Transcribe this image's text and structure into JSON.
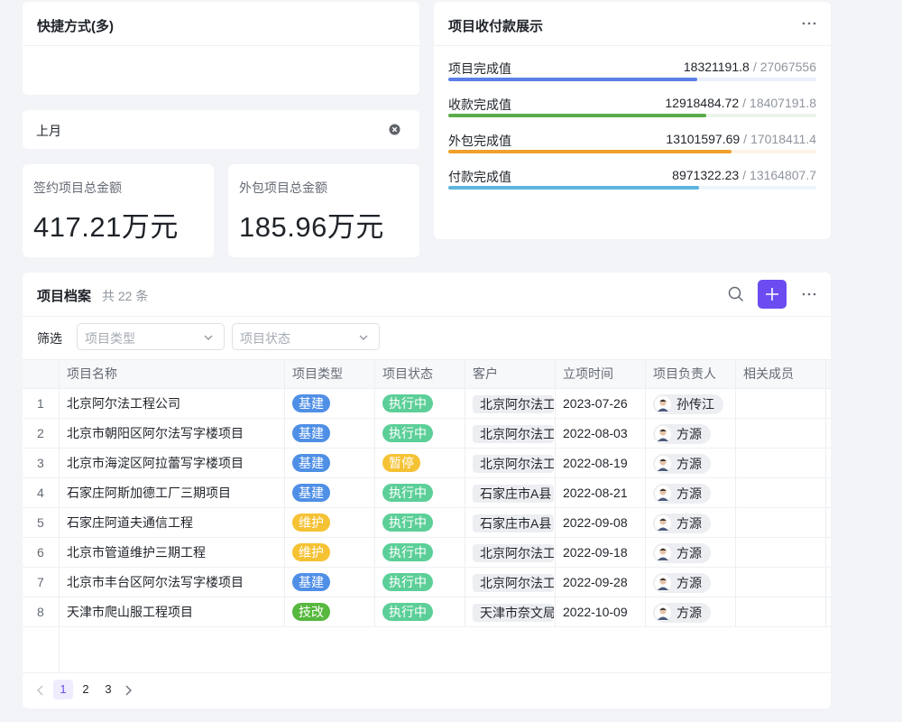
{
  "shortcuts": {
    "title": "快捷方式(多)"
  },
  "period": {
    "value": "上月"
  },
  "stats": [
    {
      "label": "签约项目总金额",
      "value": "417.21万元"
    },
    {
      "label": "外包项目总金额",
      "value": "185.96万元"
    }
  ],
  "progress": {
    "title": "项目收付款展示",
    "separator": "/",
    "items": [
      {
        "label": "项目完成值",
        "value": 18321191.8,
        "total": 27067556,
        "color": "#5b7fe8"
      },
      {
        "label": "收款完成值",
        "value": 12918484.72,
        "total": 18407191.8,
        "color": "#5aab48"
      },
      {
        "label": "外包完成值",
        "value": 13101597.69,
        "total": 17018411.4,
        "color": "#f0a02c"
      },
      {
        "label": "付款完成值",
        "value": 8971322.23,
        "total": 13164807.7,
        "color": "#5db4df"
      }
    ]
  },
  "table": {
    "title": "项目档案",
    "count": "共 22 条",
    "filter_label": "筛选",
    "filters": [
      "项目类型",
      "项目状态"
    ],
    "columns": [
      "项目名称",
      "项目类型",
      "项目状态",
      "客户",
      "立项时间",
      "项目负责人",
      "相关成员"
    ],
    "rows": [
      {
        "no": 1,
        "name": "北京阿尔法工程公司",
        "type": {
          "text": "基建",
          "color": "#4f8fe6"
        },
        "status": {
          "text": "执行中",
          "color": "#5ccf98"
        },
        "client": "北京阿尔法工",
        "date": "2023-07-26",
        "owner": "孙传江"
      },
      {
        "no": 2,
        "name": "北京市朝阳区阿尔法写字楼项目",
        "type": {
          "text": "基建",
          "color": "#4f8fe6"
        },
        "status": {
          "text": "执行中",
          "color": "#5ccf98"
        },
        "client": "北京阿尔法工",
        "date": "2022-08-03",
        "owner": "方源"
      },
      {
        "no": 3,
        "name": "北京市海淀区阿拉蕾写字楼项目",
        "type": {
          "text": "基建",
          "color": "#4f8fe6"
        },
        "status": {
          "text": "暂停",
          "color": "#f5c234"
        },
        "client": "北京阿尔法工",
        "date": "2022-08-19",
        "owner": "方源"
      },
      {
        "no": 4,
        "name": "石家庄阿斯加德工厂三期项目",
        "type": {
          "text": "基建",
          "color": "#4f8fe6"
        },
        "status": {
          "text": "执行中",
          "color": "#5ccf98"
        },
        "client": "石家庄市A县",
        "date": "2022-08-21",
        "owner": "方源"
      },
      {
        "no": 5,
        "name": "石家庄阿道夫通信工程",
        "type": {
          "text": "维护",
          "color": "#f5c234"
        },
        "status": {
          "text": "执行中",
          "color": "#5ccf98"
        },
        "client": "石家庄市A县",
        "date": "2022-09-08",
        "owner": "方源"
      },
      {
        "no": 6,
        "name": "北京市管道维护三期工程",
        "type": {
          "text": "维护",
          "color": "#f5c234"
        },
        "status": {
          "text": "执行中",
          "color": "#5ccf98"
        },
        "client": "北京阿尔法工",
        "date": "2022-09-18",
        "owner": "方源"
      },
      {
        "no": 7,
        "name": "北京市丰台区阿尔法写字楼项目",
        "type": {
          "text": "基建",
          "color": "#4f8fe6"
        },
        "status": {
          "text": "执行中",
          "color": "#5ccf98"
        },
        "client": "北京阿尔法工",
        "date": "2022-09-28",
        "owner": "方源"
      },
      {
        "no": 8,
        "name": "天津市爬山服工程项目",
        "type": {
          "text": "技改",
          "color": "#56b83e"
        },
        "status": {
          "text": "执行中",
          "color": "#5ccf98"
        },
        "client": "天津市奈文局",
        "date": "2022-10-09",
        "owner": "方源"
      }
    ],
    "pagination": [
      1,
      2,
      3
    ]
  }
}
